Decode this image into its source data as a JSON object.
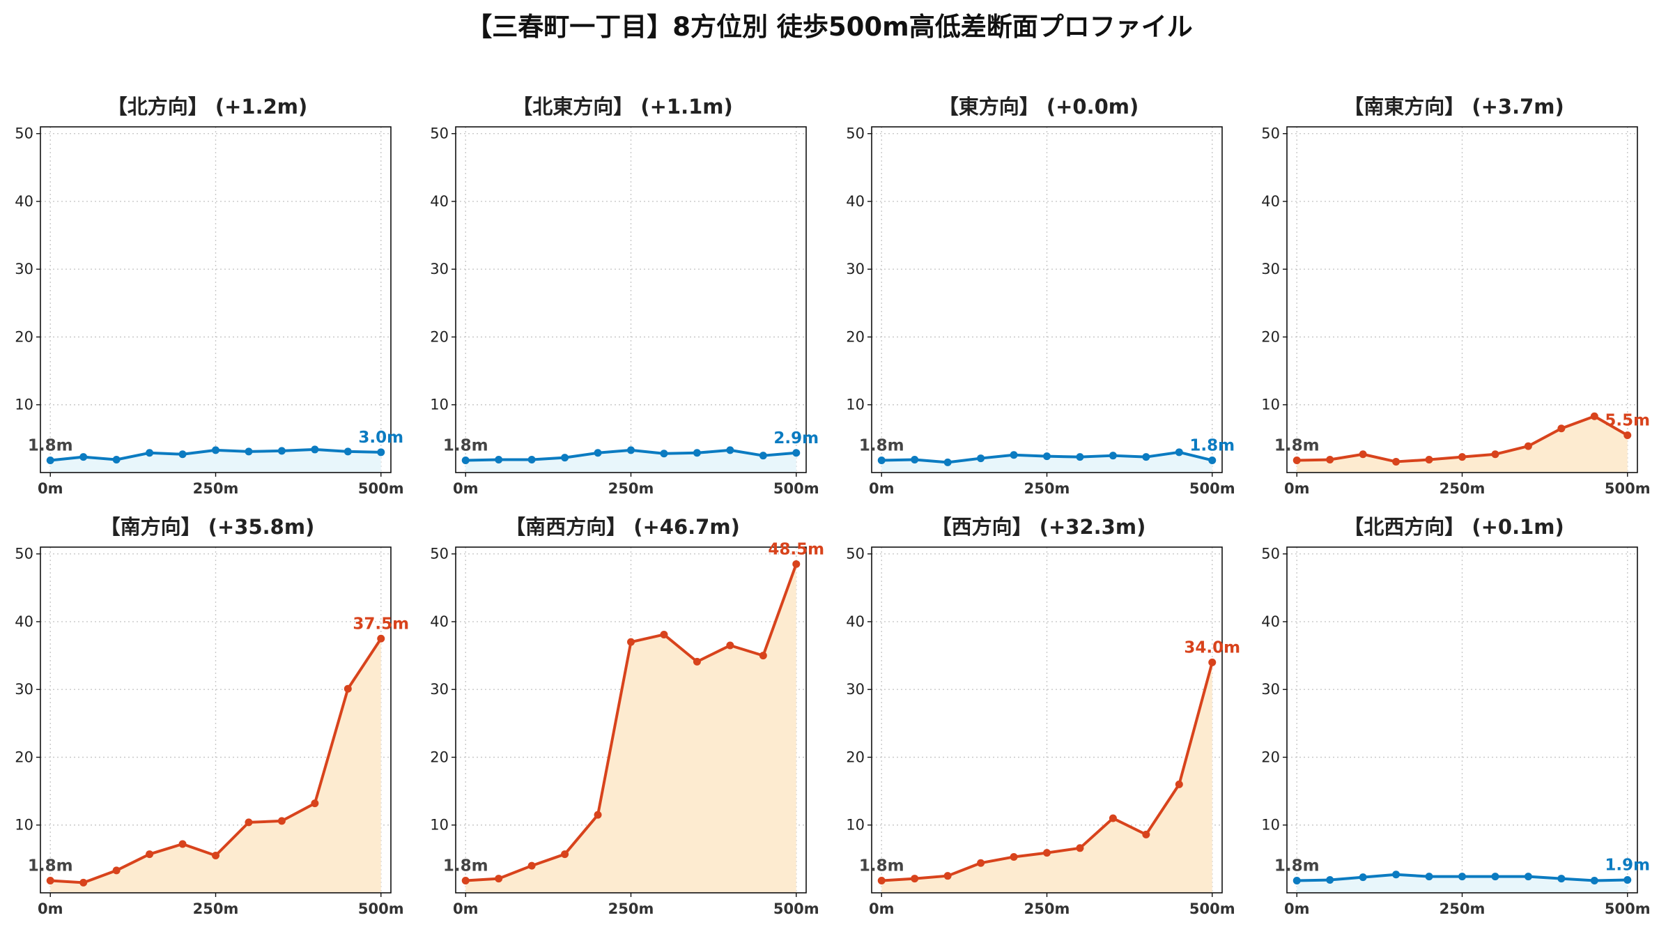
{
  "title": "【三春町一丁目】8方位別 徒歩500m高低差断面プロファイル",
  "colors": {
    "flat_line": "#1f77b4",
    "flat_line_display": "#0b7bc1",
    "flat_fill": "#e8f6fb",
    "slope_line": "#d8431c",
    "slope_fill": "#fdebd0",
    "grid": "#c8c8c8"
  },
  "chart_data": [
    {
      "type": "line",
      "title": "【北方向】 (+1.2m)",
      "style": "flat",
      "x": [
        0,
        50,
        100,
        150,
        200,
        250,
        300,
        350,
        400,
        450,
        500
      ],
      "values": [
        1.8,
        2.3,
        1.9,
        2.9,
        2.7,
        3.3,
        3.1,
        3.2,
        3.4,
        3.1,
        3.0
      ],
      "start_label": "1.8m",
      "end_label": "3.0m",
      "xticks": [
        "0m",
        "250m",
        "500m"
      ],
      "yticks": [
        10,
        20,
        30,
        40,
        50
      ],
      "ylim": [
        0,
        51
      ],
      "xlim": [
        -15,
        515
      ],
      "grid": true
    },
    {
      "type": "line",
      "title": "【北東方向】 (+1.1m)",
      "style": "flat",
      "x": [
        0,
        50,
        100,
        150,
        200,
        250,
        300,
        350,
        400,
        450,
        500
      ],
      "values": [
        1.8,
        1.9,
        1.9,
        2.2,
        2.9,
        3.3,
        2.8,
        2.9,
        3.3,
        2.5,
        2.9
      ],
      "start_label": "1.8m",
      "end_label": "2.9m",
      "xticks": [
        "0m",
        "250m",
        "500m"
      ],
      "yticks": [
        10,
        20,
        30,
        40,
        50
      ],
      "ylim": [
        0,
        51
      ],
      "xlim": [
        -15,
        515
      ],
      "grid": true
    },
    {
      "type": "line",
      "title": "【東方向】 (+0.0m)",
      "style": "flat",
      "x": [
        0,
        50,
        100,
        150,
        200,
        250,
        300,
        350,
        400,
        450,
        500
      ],
      "values": [
        1.8,
        1.9,
        1.5,
        2.1,
        2.6,
        2.4,
        2.3,
        2.5,
        2.3,
        3.0,
        1.8
      ],
      "start_label": "1.8m",
      "end_label": "1.8m",
      "xticks": [
        "0m",
        "250m",
        "500m"
      ],
      "yticks": [
        10,
        20,
        30,
        40,
        50
      ],
      "ylim": [
        0,
        51
      ],
      "xlim": [
        -15,
        515
      ],
      "grid": true
    },
    {
      "type": "line",
      "title": "【南東方向】 (+3.7m)",
      "style": "slope",
      "x": [
        0,
        50,
        100,
        150,
        200,
        250,
        300,
        350,
        400,
        450,
        500
      ],
      "values": [
        1.8,
        1.9,
        2.7,
        1.6,
        1.9,
        2.3,
        2.7,
        3.9,
        6.5,
        8.3,
        5.5
      ],
      "start_label": "1.8m",
      "end_label": "5.5m",
      "xticks": [
        "0m",
        "250m",
        "500m"
      ],
      "yticks": [
        10,
        20,
        30,
        40,
        50
      ],
      "ylim": [
        0,
        51
      ],
      "xlim": [
        -15,
        515
      ],
      "grid": true
    },
    {
      "type": "line",
      "title": "【南方向】 (+35.8m)",
      "style": "slope",
      "x": [
        0,
        50,
        100,
        150,
        200,
        250,
        300,
        350,
        400,
        450,
        500
      ],
      "values": [
        1.8,
        1.5,
        3.3,
        5.7,
        7.2,
        5.5,
        10.4,
        10.6,
        13.2,
        30.1,
        37.5
      ],
      "start_label": "1.8m",
      "end_label": "37.5m",
      "xticks": [
        "0m",
        "250m",
        "500m"
      ],
      "yticks": [
        10,
        20,
        30,
        40,
        50
      ],
      "ylim": [
        0,
        51
      ],
      "xlim": [
        -15,
        515
      ],
      "grid": true
    },
    {
      "type": "line",
      "title": "【南西方向】 (+46.7m)",
      "style": "slope",
      "x": [
        0,
        50,
        100,
        150,
        200,
        250,
        300,
        350,
        400,
        450,
        500
      ],
      "values": [
        1.8,
        2.1,
        4.0,
        5.7,
        11.5,
        37.0,
        38.1,
        34.1,
        36.5,
        35.0,
        48.5
      ],
      "start_label": "1.8m",
      "end_label": "48.5m",
      "xticks": [
        "0m",
        "250m",
        "500m"
      ],
      "yticks": [
        10,
        20,
        30,
        40,
        50
      ],
      "ylim": [
        0,
        51
      ],
      "xlim": [
        -15,
        515
      ],
      "grid": true
    },
    {
      "type": "line",
      "title": "【西方向】 (+32.3m)",
      "style": "slope",
      "x": [
        0,
        50,
        100,
        150,
        200,
        250,
        300,
        350,
        400,
        450,
        500
      ],
      "values": [
        1.8,
        2.1,
        2.5,
        4.4,
        5.3,
        5.9,
        6.6,
        11.0,
        8.6,
        16.0,
        34.0
      ],
      "start_label": "1.8m",
      "end_label": "34.0m",
      "xticks": [
        "0m",
        "250m",
        "500m"
      ],
      "yticks": [
        10,
        20,
        30,
        40,
        50
      ],
      "ylim": [
        0,
        51
      ],
      "xlim": [
        -15,
        515
      ],
      "grid": true
    },
    {
      "type": "line",
      "title": "【北西方向】 (+0.1m)",
      "style": "flat",
      "x": [
        0,
        50,
        100,
        150,
        200,
        250,
        300,
        350,
        400,
        450,
        500
      ],
      "values": [
        1.8,
        1.9,
        2.3,
        2.7,
        2.4,
        2.4,
        2.4,
        2.4,
        2.1,
        1.8,
        1.9
      ],
      "start_label": "1.8m",
      "end_label": "1.9m",
      "xticks": [
        "0m",
        "250m",
        "500m"
      ],
      "yticks": [
        10,
        20,
        30,
        40,
        50
      ],
      "ylim": [
        0,
        51
      ],
      "xlim": [
        -15,
        515
      ],
      "grid": true
    }
  ]
}
